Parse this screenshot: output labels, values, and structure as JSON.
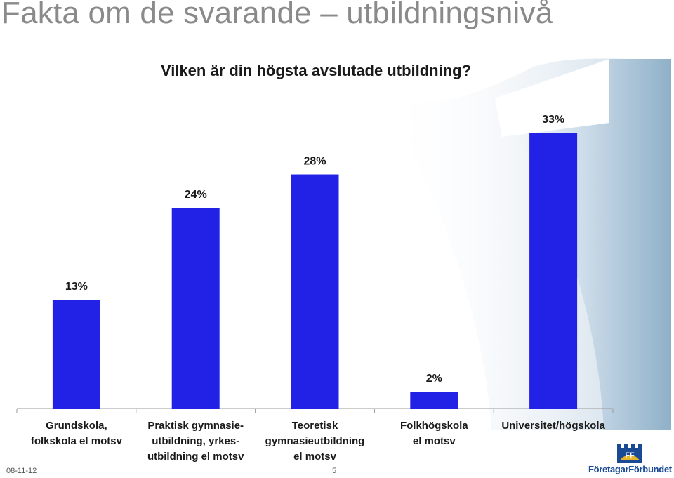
{
  "slide": {
    "title": "Fakta om de svarande – utbildningsnivå",
    "date": "08-11-12",
    "page_number": "5"
  },
  "logo": {
    "text": "FöretagarFörbundet",
    "mark_text": "FF"
  },
  "colors": {
    "bar": "#2222e6",
    "axis": "#9a9a9a",
    "title": "#8a8a8a",
    "logo": "#1a4a94"
  },
  "chart_data": {
    "type": "bar",
    "title": "Vilken är din högsta avslutade utbildning?",
    "categories": [
      [
        "Grundskola,",
        "folkskola el motsv"
      ],
      [
        "Praktisk gymnasie-",
        "utbildning, yrkes-",
        "utbildning el motsv"
      ],
      [
        "Teoretisk",
        "gymnasieutbildning",
        "el motsv"
      ],
      [
        "Folkhögskola",
        "el motsv"
      ],
      [
        "Universitet/högskola"
      ]
    ],
    "values": [
      13,
      24,
      28,
      2,
      33
    ],
    "data_labels": [
      "13%",
      "24%",
      "28%",
      "2%",
      "33%"
    ],
    "unit": "%",
    "ylim": [
      0,
      33
    ]
  }
}
